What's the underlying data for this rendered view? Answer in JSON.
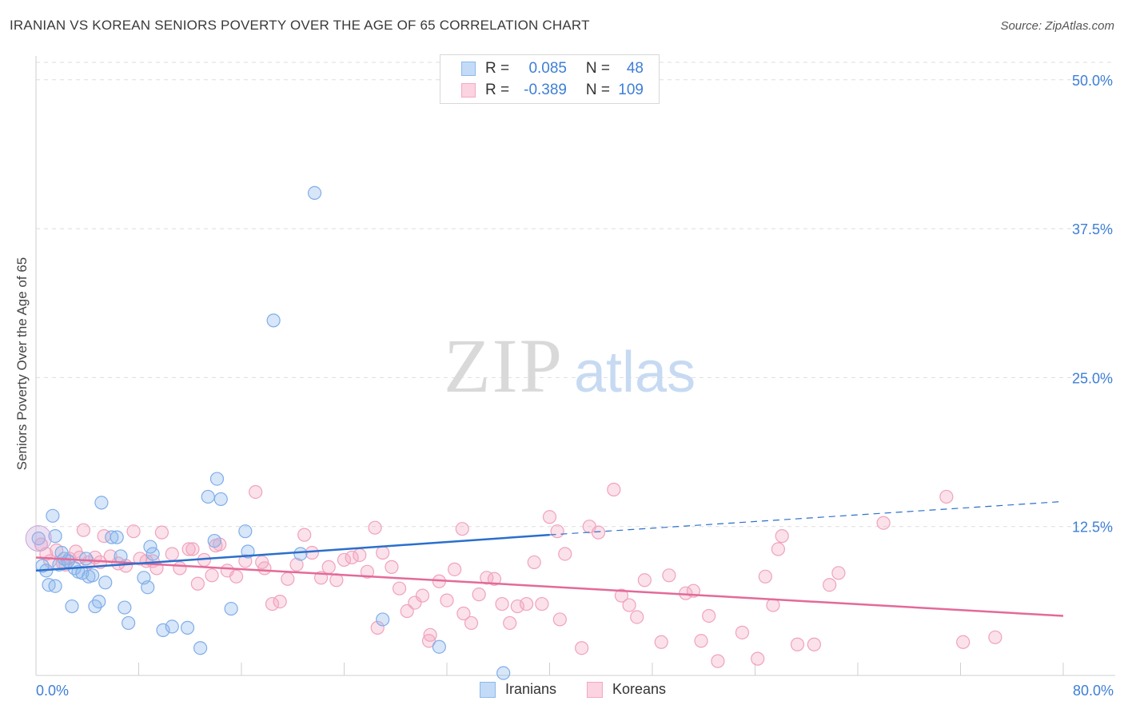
{
  "title": "IRANIAN VS KOREAN SENIORS POVERTY OVER THE AGE OF 65 CORRELATION CHART",
  "source": "Source: ZipAtlas.com",
  "watermark": {
    "zip": "ZIP",
    "atlas": "atlas"
  },
  "legend_top": {
    "rows": [
      {
        "r_label": "R =",
        "r_value": "0.085",
        "n_label": "N =",
        "n_value": "48"
      },
      {
        "r_label": "R =",
        "r_value": "-0.389",
        "n_label": "N =",
        "n_value": "109"
      }
    ]
  },
  "legend_bottom": {
    "iranians": "Iranians",
    "koreans": "Koreans"
  },
  "chart_data": {
    "type": "scatter",
    "title": "IRANIAN VS KOREAN SENIORS POVERTY OVER THE AGE OF 65 CORRELATION CHART",
    "xlabel": "",
    "ylabel": "Seniors Poverty Over the Age of 65",
    "xlim": [
      0,
      80
    ],
    "ylim": [
      0,
      52
    ],
    "x_tick_labels": [
      "0.0%",
      "80.0%"
    ],
    "y_ticks": [
      12.5,
      25.0,
      37.5,
      50.0
    ],
    "y_tick_labels": [
      "12.5%",
      "25.0%",
      "37.5%",
      "50.0%"
    ],
    "grid": true,
    "legend_position": "top-center",
    "colors": {
      "iranians": "#8db8ec",
      "koreans": "#f4a8c2",
      "iranians_line": "#2a6fcc",
      "koreans_line": "#e36a98"
    },
    "series": [
      {
        "name": "Iranians",
        "points": [
          [
            0.2,
            11.5
          ],
          [
            0.5,
            9.2
          ],
          [
            0.8,
            8.8
          ],
          [
            1.0,
            7.6
          ],
          [
            1.3,
            13.4
          ],
          [
            1.5,
            7.5
          ],
          [
            1.8,
            9.3
          ],
          [
            2.2,
            9.8
          ],
          [
            2.5,
            9.6
          ],
          [
            2.8,
            5.8
          ],
          [
            3.0,
            9.0
          ],
          [
            3.3,
            8.7
          ],
          [
            3.6,
            8.6
          ],
          [
            3.9,
            9.8
          ],
          [
            4.1,
            8.3
          ],
          [
            4.4,
            8.4
          ],
          [
            4.6,
            5.8
          ],
          [
            4.9,
            6.2
          ],
          [
            5.1,
            14.5
          ],
          [
            5.4,
            7.8
          ],
          [
            5.9,
            11.6
          ],
          [
            6.3,
            11.6
          ],
          [
            6.6,
            10.0
          ],
          [
            6.9,
            5.7
          ],
          [
            7.2,
            4.4
          ],
          [
            8.4,
            8.2
          ],
          [
            8.7,
            7.4
          ],
          [
            9.1,
            10.2
          ],
          [
            9.9,
            3.8
          ],
          [
            10.6,
            4.1
          ],
          [
            11.8,
            4.0
          ],
          [
            12.8,
            2.3
          ],
          [
            13.4,
            15.0
          ],
          [
            13.9,
            11.3
          ],
          [
            14.1,
            16.5
          ],
          [
            14.4,
            14.8
          ],
          [
            15.2,
            5.6
          ],
          [
            16.3,
            12.1
          ],
          [
            16.5,
            10.4
          ],
          [
            18.5,
            29.8
          ],
          [
            20.6,
            10.2
          ],
          [
            21.7,
            40.5
          ],
          [
            27.0,
            4.7
          ],
          [
            31.4,
            2.4
          ],
          [
            36.4,
            0.2
          ],
          [
            1.5,
            11.7
          ],
          [
            2.0,
            10.3
          ],
          [
            8.9,
            10.8
          ]
        ]
      },
      {
        "name": "Koreans",
        "points": [
          [
            0.4,
            11.0
          ],
          [
            0.8,
            10.2
          ],
          [
            1.1,
            9.6
          ],
          [
            1.6,
            10.5
          ],
          [
            2.1,
            9.4
          ],
          [
            2.6,
            9.8
          ],
          [
            3.1,
            10.4
          ],
          [
            3.7,
            12.2
          ],
          [
            4.1,
            9.5
          ],
          [
            4.6,
            9.9
          ],
          [
            5.3,
            11.7
          ],
          [
            5.8,
            10.0
          ],
          [
            6.4,
            9.4
          ],
          [
            7.0,
            9.2
          ],
          [
            7.6,
            12.1
          ],
          [
            8.1,
            9.8
          ],
          [
            8.6,
            9.6
          ],
          [
            9.1,
            9.6
          ],
          [
            9.8,
            12.0
          ],
          [
            10.6,
            10.2
          ],
          [
            11.2,
            9.0
          ],
          [
            11.9,
            10.6
          ],
          [
            12.6,
            7.7
          ],
          [
            13.1,
            9.7
          ],
          [
            13.7,
            8.4
          ],
          [
            14.3,
            11.0
          ],
          [
            14.9,
            8.8
          ],
          [
            15.6,
            8.3
          ],
          [
            16.3,
            9.6
          ],
          [
            17.1,
            15.4
          ],
          [
            17.8,
            9.0
          ],
          [
            18.4,
            6.0
          ],
          [
            19.0,
            6.2
          ],
          [
            19.6,
            8.1
          ],
          [
            20.3,
            9.3
          ],
          [
            20.9,
            11.8
          ],
          [
            21.5,
            10.3
          ],
          [
            22.2,
            8.2
          ],
          [
            22.8,
            9.1
          ],
          [
            23.4,
            8.0
          ],
          [
            24.0,
            9.7
          ],
          [
            24.6,
            9.9
          ],
          [
            25.2,
            10.1
          ],
          [
            25.8,
            8.7
          ],
          [
            26.4,
            12.4
          ],
          [
            27.0,
            10.3
          ],
          [
            27.7,
            9.1
          ],
          [
            28.3,
            7.3
          ],
          [
            28.9,
            5.4
          ],
          [
            29.5,
            6.1
          ],
          [
            30.1,
            6.7
          ],
          [
            30.7,
            3.4
          ],
          [
            31.4,
            7.9
          ],
          [
            32.0,
            6.3
          ],
          [
            32.6,
            8.9
          ],
          [
            33.2,
            12.3
          ],
          [
            33.9,
            4.4
          ],
          [
            34.5,
            6.8
          ],
          [
            35.1,
            8.2
          ],
          [
            35.7,
            8.1
          ],
          [
            36.3,
            6.0
          ],
          [
            36.9,
            4.4
          ],
          [
            37.5,
            5.8
          ],
          [
            38.2,
            6.0
          ],
          [
            38.8,
            9.5
          ],
          [
            39.4,
            6.0
          ],
          [
            40.0,
            13.3
          ],
          [
            40.6,
            12.1
          ],
          [
            41.2,
            10.2
          ],
          [
            42.5,
            2.3
          ],
          [
            43.1,
            12.5
          ],
          [
            43.8,
            12.0
          ],
          [
            45.0,
            15.6
          ],
          [
            45.6,
            6.7
          ],
          [
            46.2,
            5.9
          ],
          [
            46.8,
            4.9
          ],
          [
            47.4,
            8.0
          ],
          [
            48.7,
            2.8
          ],
          [
            49.3,
            8.4
          ],
          [
            50.6,
            6.9
          ],
          [
            51.2,
            7.1
          ],
          [
            51.8,
            2.9
          ],
          [
            52.4,
            5.0
          ],
          [
            53.1,
            1.2
          ],
          [
            55.0,
            3.6
          ],
          [
            56.2,
            1.4
          ],
          [
            56.8,
            8.3
          ],
          [
            57.4,
            5.9
          ],
          [
            58.1,
            11.7
          ],
          [
            59.3,
            2.6
          ],
          [
            60.6,
            2.6
          ],
          [
            61.8,
            7.6
          ],
          [
            62.5,
            8.6
          ],
          [
            66.0,
            12.8
          ],
          [
            70.9,
            15.0
          ],
          [
            72.2,
            2.8
          ],
          [
            74.7,
            3.2
          ],
          [
            2.3,
            9.3
          ],
          [
            5.0,
            9.5
          ],
          [
            9.4,
            9.0
          ],
          [
            12.2,
            10.6
          ],
          [
            14.0,
            10.9
          ],
          [
            17.6,
            9.5
          ],
          [
            26.6,
            4.0
          ],
          [
            30.6,
            2.9
          ],
          [
            33.3,
            5.2
          ],
          [
            57.8,
            10.6
          ],
          [
            3.4,
            9.9
          ],
          [
            40.8,
            4.7
          ]
        ]
      }
    ],
    "trendlines": [
      {
        "name": "Iranians",
        "x_solid": [
          0,
          40
        ],
        "y_solid": [
          8.8,
          11.8
        ],
        "x_dashed": [
          40,
          80
        ],
        "y_dashed": [
          11.8,
          14.6
        ]
      },
      {
        "name": "Koreans",
        "x": [
          0,
          80
        ],
        "y": [
          9.9,
          5.0
        ]
      }
    ]
  }
}
